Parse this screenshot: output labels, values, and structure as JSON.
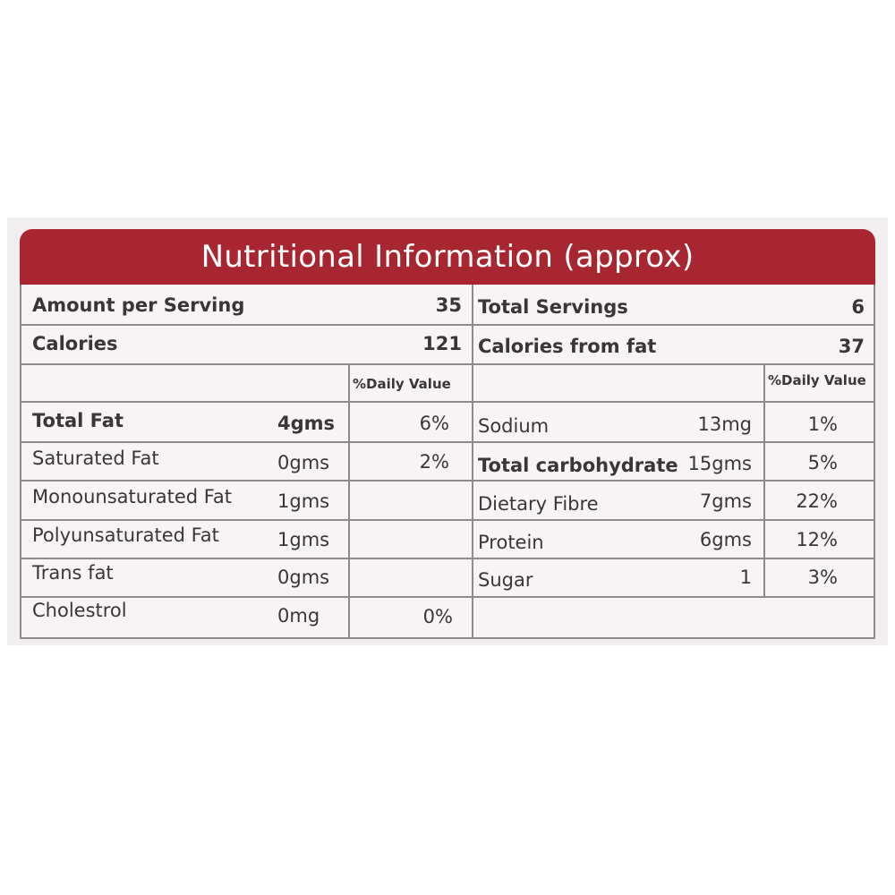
{
  "title": "Nutritional Information (approx)",
  "summary": {
    "amount_per_serving_label": "Amount per Serving",
    "amount_per_serving_value": "35",
    "total_servings_label": "Total Servings",
    "total_servings_value": "6",
    "calories_label": "Calories",
    "calories_value": "121",
    "calories_from_fat_label": "Calories from fat",
    "calories_from_fat_value": "37"
  },
  "daily_value_header": "%Daily Value",
  "left_rows": [
    {
      "name": "Total Fat",
      "amount": "4gms",
      "dv": "6%"
    },
    {
      "name": "Saturated Fat",
      "amount": "0gms",
      "dv": "2%"
    },
    {
      "name": "Monounsaturated Fat",
      "amount": "1gms",
      "dv": ""
    },
    {
      "name": "Polyunsaturated Fat",
      "amount": "1gms",
      "dv": ""
    },
    {
      "name": "Trans fat",
      "amount": "0gms",
      "dv": ""
    },
    {
      "name": "Cholestrol",
      "amount": "0mg",
      "dv": "0%"
    }
  ],
  "right_rows": [
    {
      "name": "Sodium",
      "amount": "13mg",
      "dv": "1%"
    },
    {
      "name": "Total carbohydrate",
      "amount": "15gms",
      "dv": "5%"
    },
    {
      "name": "Dietary Fibre",
      "amount": "7gms",
      "dv": "22%"
    },
    {
      "name": "Protein",
      "amount": "6gms",
      "dv": "12%"
    },
    {
      "name": "Sugar",
      "amount": "1",
      "dv": "3%"
    }
  ],
  "colors": {
    "header": "#a7262f",
    "text": "#3a3536",
    "rule": "#8e898b"
  }
}
